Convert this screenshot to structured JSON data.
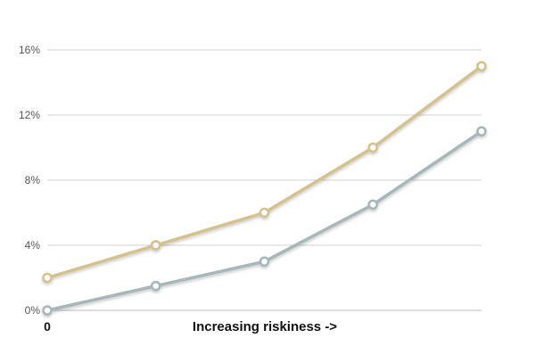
{
  "chart_data": {
    "type": "line",
    "title": "",
    "xlabel": "Increasing riskiness ->",
    "ylabel": "",
    "x": [
      0,
      1,
      2,
      3,
      4
    ],
    "x_tick_labels": [
      "0"
    ],
    "ylim": [
      0,
      16
    ],
    "y_ticks": [
      0,
      4,
      8,
      12,
      16
    ],
    "y_tick_labels": [
      "0%",
      "4%",
      "8%",
      "12%",
      "16%"
    ],
    "grid": true,
    "legend": "none",
    "series": [
      {
        "values": [
          2,
          4,
          6,
          10,
          15
        ],
        "color": "#d4c18c"
      },
      {
        "values": [
          0,
          1.5,
          3,
          6.5,
          11
        ],
        "color": "#a7b7b7"
      }
    ]
  }
}
